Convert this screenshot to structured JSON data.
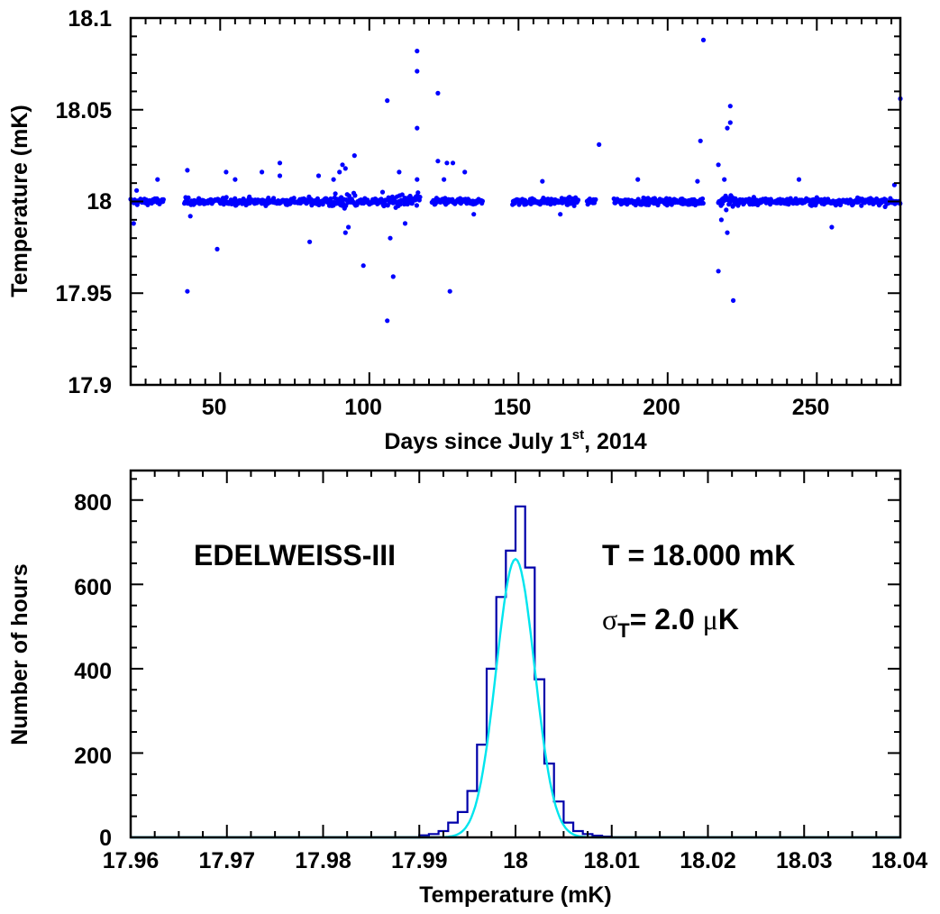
{
  "chart_data": [
    {
      "type": "scatter",
      "xlabel": {
        "pre": "Days since July 1",
        "sup": "st",
        "post": ", 2014"
      },
      "ylabel": "Temperature (mK)",
      "xlim": [
        20,
        278
      ],
      "ylim": [
        17.9,
        18.1
      ],
      "xticks": [
        50,
        100,
        150,
        200,
        250
      ],
      "xtick_labels": [
        "50",
        "100",
        "150",
        "200",
        "250"
      ],
      "yticks": [
        17.9,
        17.95,
        18.0,
        18.05,
        18.1
      ],
      "ytick_labels": [
        "17.9",
        "17.95",
        "18",
        "18.05",
        "18.1"
      ],
      "point_color": "#0000ff",
      "data_segments": [
        [
          20,
          31
        ],
        [
          38,
          117
        ],
        [
          121,
          138
        ],
        [
          148,
          170
        ],
        [
          173,
          176
        ],
        [
          182,
          212
        ],
        [
          217,
          278
        ]
      ],
      "baseline": 18.0,
      "outliers": [
        {
          "x": 21,
          "y": 17.988
        },
        {
          "x": 22,
          "y": 18.006
        },
        {
          "x": 29,
          "y": 18.012
        },
        {
          "x": 39,
          "y": 18.017
        },
        {
          "x": 39,
          "y": 17.951
        },
        {
          "x": 40,
          "y": 17.992
        },
        {
          "x": 49,
          "y": 17.974
        },
        {
          "x": 52,
          "y": 18.016
        },
        {
          "x": 55,
          "y": 18.012
        },
        {
          "x": 64,
          "y": 18.016
        },
        {
          "x": 70,
          "y": 18.021
        },
        {
          "x": 70,
          "y": 18.014
        },
        {
          "x": 80,
          "y": 17.978
        },
        {
          "x": 83,
          "y": 18.014
        },
        {
          "x": 88,
          "y": 18.012
        },
        {
          "x": 90,
          "y": 18.016
        },
        {
          "x": 91,
          "y": 18.02
        },
        {
          "x": 92,
          "y": 17.983
        },
        {
          "x": 92,
          "y": 18.018
        },
        {
          "x": 93,
          "y": 17.986
        },
        {
          "x": 95,
          "y": 18.025
        },
        {
          "x": 98,
          "y": 17.965
        },
        {
          "x": 106,
          "y": 18.055
        },
        {
          "x": 106,
          "y": 17.935
        },
        {
          "x": 107,
          "y": 17.98
        },
        {
          "x": 108,
          "y": 17.959
        },
        {
          "x": 110,
          "y": 18.016
        },
        {
          "x": 112,
          "y": 17.988
        },
        {
          "x": 116,
          "y": 18.082
        },
        {
          "x": 116,
          "y": 18.071
        },
        {
          "x": 116,
          "y": 18.04
        },
        {
          "x": 116,
          "y": 18.012
        },
        {
          "x": 123,
          "y": 18.059
        },
        {
          "x": 123,
          "y": 18.022
        },
        {
          "x": 125,
          "y": 18.012
        },
        {
          "x": 126,
          "y": 18.021
        },
        {
          "x": 127,
          "y": 17.951
        },
        {
          "x": 128,
          "y": 18.021
        },
        {
          "x": 132,
          "y": 18.016
        },
        {
          "x": 135,
          "y": 17.993
        },
        {
          "x": 158,
          "y": 18.011
        },
        {
          "x": 164,
          "y": 17.993
        },
        {
          "x": 177,
          "y": 18.031
        },
        {
          "x": 190,
          "y": 18.012
        },
        {
          "x": 210,
          "y": 18.011
        },
        {
          "x": 211,
          "y": 18.033
        },
        {
          "x": 212,
          "y": 18.088
        },
        {
          "x": 217,
          "y": 18.02
        },
        {
          "x": 217,
          "y": 17.962
        },
        {
          "x": 219,
          "y": 18.012
        },
        {
          "x": 220,
          "y": 18.04
        },
        {
          "x": 221,
          "y": 18.052
        },
        {
          "x": 221,
          "y": 18.043
        },
        {
          "x": 222,
          "y": 17.946
        },
        {
          "x": 220,
          "y": 17.983
        },
        {
          "x": 218,
          "y": 17.99
        },
        {
          "x": 244,
          "y": 18.012
        },
        {
          "x": 255,
          "y": 17.986
        },
        {
          "x": 276,
          "y": 18.009
        },
        {
          "x": 278,
          "y": 18.056
        }
      ]
    },
    {
      "type": "histogram",
      "xlabel": "Temperature (mK)",
      "ylabel": "Number of hours",
      "xlim": [
        17.96,
        18.04
      ],
      "ylim": [
        0,
        870
      ],
      "xticks": [
        17.96,
        17.97,
        17.98,
        17.99,
        18.0,
        18.01,
        18.02,
        18.03,
        18.04
      ],
      "xtick_labels": [
        "17.96",
        "17.97",
        "17.98",
        "17.99",
        "18",
        "18.01",
        "18.02",
        "18.03",
        "18.04"
      ],
      "yticks": [
        0,
        200,
        400,
        600,
        800
      ],
      "ytick_labels": [
        "0",
        "200",
        "400",
        "600",
        "800"
      ],
      "bin_edges": [
        17.99,
        17.991,
        17.992,
        17.993,
        17.994,
        17.995,
        17.996,
        17.997,
        17.998,
        17.999,
        18.0,
        18.001,
        18.002,
        18.003,
        18.004,
        18.005,
        18.006,
        18.007,
        18.008,
        18.009,
        18.01
      ],
      "counts": [
        5,
        8,
        15,
        35,
        60,
        110,
        220,
        400,
        570,
        680,
        785,
        640,
        375,
        175,
        85,
        35,
        15,
        8,
        4,
        2
      ],
      "histogram_color": "#0000aa",
      "fit": {
        "mean": 18.0,
        "sigma": 0.002,
        "amplitude": 660,
        "color": "#00e5ee"
      },
      "annotations": {
        "experiment": "EDELWEISS-III",
        "mean_text": "T =  18.000 mK",
        "sigma_symbol": "σ",
        "sigma_sub": "T",
        "sigma_value": "=  2.0 ",
        "mu_symbol": "μ",
        "unit_K": "K"
      }
    }
  ]
}
